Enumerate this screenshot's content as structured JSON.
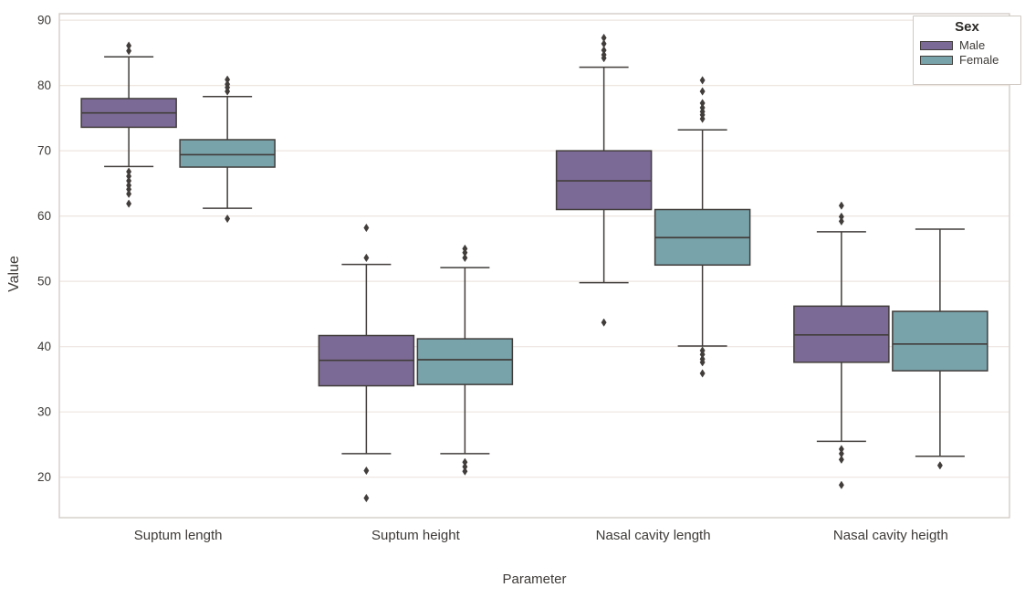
{
  "chart_data": {
    "type": "boxplot",
    "xlabel": "Parameter",
    "ylabel": "Value",
    "ylim": [
      13.8,
      91.0
    ],
    "yticks": [
      20,
      30,
      40,
      50,
      60,
      70,
      80,
      90
    ],
    "grid": "horizontal",
    "categories": [
      "Suptum length",
      "Suptum height",
      "Nasal cavity length",
      "Nasal cavity heigth"
    ],
    "legend": {
      "title": "Sex",
      "position": "top-right",
      "entries": [
        {
          "label": "Male",
          "color": "#7c6a96"
        },
        {
          "label": "Female",
          "color": "#78a3ab"
        }
      ]
    },
    "colors": {
      "male_fill": "#7c6a96",
      "female_fill": "#78a3ab",
      "line": "#413d3b",
      "grid": "#ede5e0",
      "spine": "#cfc8c2",
      "text": "#3d3a37",
      "background": "#ffffff"
    },
    "series": [
      {
        "name": "Male",
        "color": "#7c6a96",
        "boxes": [
          {
            "category": "Suptum length",
            "whisker_low": 67.6,
            "q1": 73.6,
            "median": 75.8,
            "q3": 78.0,
            "whisker_high": 84.4,
            "outliers": [
              86.1,
              85.3,
              66.8,
              66.1,
              65.4,
              64.7,
              64.1,
              63.4,
              61.9
            ]
          },
          {
            "category": "Suptum height",
            "whisker_low": 23.6,
            "q1": 34.0,
            "median": 37.9,
            "q3": 41.7,
            "whisker_high": 52.6,
            "outliers": [
              58.2,
              53.6,
              21.0,
              16.8
            ]
          },
          {
            "category": "Nasal cavity length",
            "whisker_low": 49.8,
            "q1": 61.0,
            "median": 65.4,
            "q3": 70.0,
            "whisker_high": 82.8,
            "outliers": [
              87.3,
              86.4,
              85.4,
              84.7,
              84.2,
              43.7
            ]
          },
          {
            "category": "Nasal cavity heigth",
            "whisker_low": 25.5,
            "q1": 37.6,
            "median": 41.8,
            "q3": 46.2,
            "whisker_high": 57.6,
            "outliers": [
              61.6,
              59.9,
              59.2,
              24.3,
              23.6,
              22.7,
              18.8
            ]
          }
        ]
      },
      {
        "name": "Female",
        "color": "#78a3ab",
        "boxes": [
          {
            "category": "Suptum length",
            "whisker_low": 61.2,
            "q1": 67.5,
            "median": 69.4,
            "q3": 71.7,
            "whisker_high": 78.3,
            "outliers": [
              80.9,
              80.2,
              79.7,
              79.1,
              59.6
            ]
          },
          {
            "category": "Suptum height",
            "whisker_low": 23.6,
            "q1": 34.2,
            "median": 38.0,
            "q3": 41.2,
            "whisker_high": 52.1,
            "outliers": [
              55.0,
              54.4,
              53.6,
              22.3,
              21.6,
              20.9
            ]
          },
          {
            "category": "Nasal cavity length",
            "whisker_low": 40.1,
            "q1": 52.5,
            "median": 56.7,
            "q3": 61.0,
            "whisker_high": 73.2,
            "outliers": [
              80.8,
              79.1,
              77.3,
              76.6,
              76.0,
              75.5,
              74.9,
              39.4,
              38.8,
              38.1,
              37.6,
              35.9
            ]
          },
          {
            "category": "Nasal cavity heigth",
            "whisker_low": 23.2,
            "q1": 36.3,
            "median": 40.4,
            "q3": 45.4,
            "whisker_high": 58.0,
            "outliers": [
              21.8
            ]
          }
        ]
      }
    ]
  }
}
